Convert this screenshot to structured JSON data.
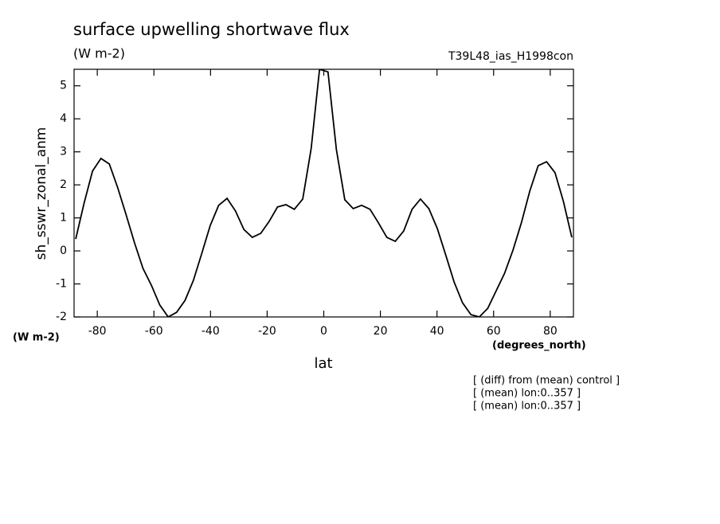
{
  "chart_data": {
    "type": "line",
    "title": "surface upwelling shortwave flux",
    "subtitle": "(W m-2)",
    "experiment": "T39L48_ias_H1998con",
    "y_label": "sh_sswr_zonal_anm",
    "y_units": "(W m-2)",
    "x_units": "(degrees_north)",
    "x_label": "lat",
    "notes": [
      "[ (diff) from (mean) control ]",
      "[ (mean) lon:0..357 ]",
      "[ (mean) lon:0..357 ]"
    ],
    "x": [
      -87.62,
      -84.65,
      -81.68,
      -78.71,
      -75.74,
      -72.77,
      -69.8,
      -66.83,
      -63.86,
      -60.89,
      -57.92,
      -54.95,
      -51.98,
      -49.01,
      -46.04,
      -43.07,
      -40.1,
      -37.13,
      -34.16,
      -31.19,
      -28.22,
      -25.25,
      -22.28,
      -19.31,
      -16.34,
      -13.37,
      -10.4,
      -7.43,
      -4.46,
      -1.49,
      1.49,
      4.46,
      7.43,
      10.4,
      13.37,
      16.34,
      19.31,
      22.28,
      25.25,
      28.22,
      31.19,
      34.16,
      37.13,
      40.1,
      43.07,
      46.04,
      49.01,
      51.98,
      54.95,
      57.92,
      60.89,
      63.86,
      66.83,
      69.8,
      72.77,
      75.74,
      78.71,
      81.68,
      84.65,
      87.62
    ],
    "series": [
      {
        "color": "#000000",
        "values": [
          0.36,
          1.45,
          2.42,
          2.8,
          2.63,
          1.91,
          1.09,
          0.24,
          -0.53,
          -1.04,
          -1.64,
          -2.0,
          -1.86,
          -1.5,
          -0.89,
          -0.07,
          0.77,
          1.38,
          1.59,
          1.21,
          0.65,
          0.41,
          0.53,
          0.89,
          1.33,
          1.4,
          1.26,
          1.57,
          3.09,
          5.5,
          5.42,
          3.07,
          1.55,
          1.28,
          1.38,
          1.26,
          0.85,
          0.41,
          0.29,
          0.6,
          1.26,
          1.57,
          1.28,
          0.68,
          -0.12,
          -0.94,
          -1.57,
          -1.93,
          -2.0,
          -1.74,
          -1.21,
          -0.68,
          0.02,
          0.85,
          1.81,
          2.58,
          2.7,
          2.37,
          1.5,
          0.41
        ]
      }
    ],
    "xlim": [
      -88.2,
      88.2
    ],
    "xticks": [
      -80,
      -60,
      -40,
      -20,
      0,
      20,
      40,
      60,
      80
    ],
    "ylim": [
      -2,
      5.5
    ],
    "yticks": [
      -2,
      -1,
      0,
      1,
      2,
      3,
      4,
      5
    ]
  }
}
